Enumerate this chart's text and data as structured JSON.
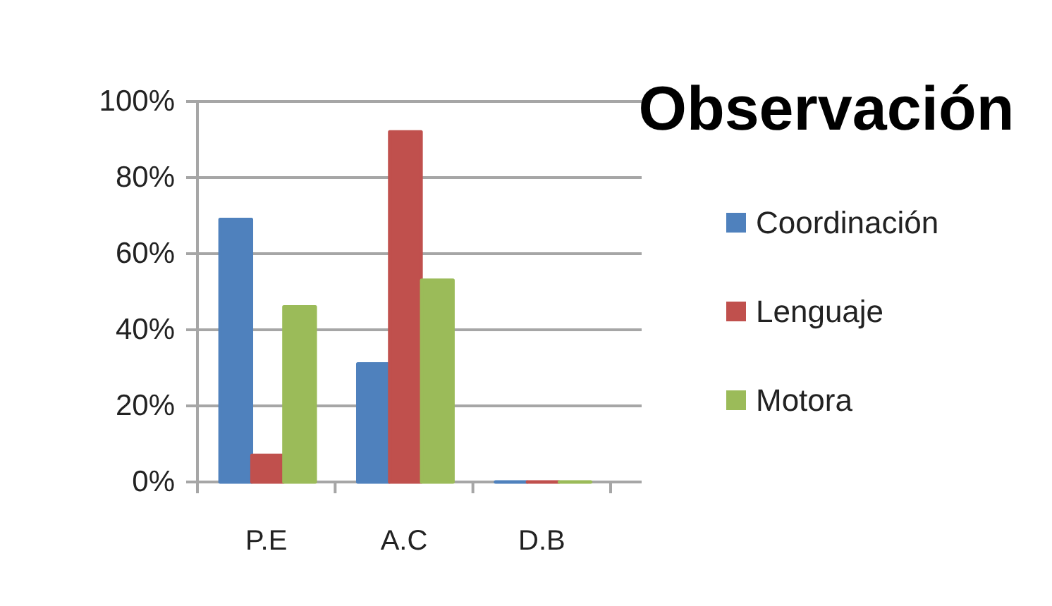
{
  "chart_data": {
    "type": "bar",
    "title": "Observación",
    "categories": [
      "P.E",
      "A.C",
      "D.B"
    ],
    "series": [
      {
        "name": "Coordinación",
        "color": "#4f81bd",
        "values": [
          69,
          31,
          0
        ]
      },
      {
        "name": "Lenguaje",
        "color": "#c0504d",
        "values": [
          7,
          92,
          0
        ]
      },
      {
        "name": "Motora",
        "color": "#9bbb59",
        "values": [
          46,
          53,
          0
        ]
      }
    ],
    "ylim": [
      0,
      100
    ],
    "yticks": [
      {
        "value": 0,
        "label": "0%"
      },
      {
        "value": 20,
        "label": "20%"
      },
      {
        "value": 40,
        "label": "40%"
      },
      {
        "value": 60,
        "label": "60%"
      },
      {
        "value": 80,
        "label": "80%"
      },
      {
        "value": 100,
        "label": "100%"
      }
    ],
    "grid": "y",
    "legend": "right"
  }
}
